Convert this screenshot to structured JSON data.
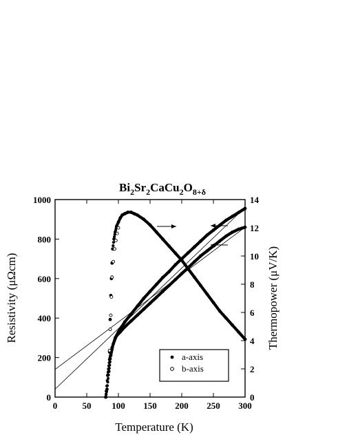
{
  "chart_data": {
    "type": "scatter",
    "title": {
      "parts": [
        {
          "t": "Bi",
          "sub": false
        },
        {
          "t": "2",
          "sub": true
        },
        {
          "t": "Sr",
          "sub": false
        },
        {
          "t": "2",
          "sub": true
        },
        {
          "t": "CaCu",
          "sub": false
        },
        {
          "t": "2",
          "sub": true
        },
        {
          "t": "O",
          "sub": false
        },
        {
          "t": "8+δ",
          "sub": true
        }
      ]
    },
    "xlabel": "Temperature (K)",
    "ylabel_left": "Resistivity (μΩcm)",
    "ylabel_right": "Thermopower (μV/K)",
    "xlim": [
      0,
      300
    ],
    "ylim_left": [
      0,
      1000
    ],
    "ylim_right": [
      0,
      14
    ],
    "xticks": [
      "0",
      "50",
      "100",
      "150",
      "200",
      "250",
      "300"
    ],
    "yticks_left": [
      "0",
      "200",
      "400",
      "600",
      "800",
      "1000"
    ],
    "yticks_right": [
      "0",
      "2",
      "4",
      "6",
      "8",
      "10",
      "12",
      "14"
    ],
    "grid": false,
    "legend": {
      "placement": "bottom-right",
      "entries": [
        {
          "label": "a-axis",
          "marker": "filled-circle"
        },
        {
          "label": "b-axis",
          "marker": "open-circle"
        }
      ]
    },
    "series": [
      {
        "label": "a-axis",
        "quantity": "resistivity",
        "axis": "left",
        "marker": "filled-circle",
        "x": [
          80,
          82,
          85,
          88,
          92,
          97,
          103,
          110,
          120,
          130,
          140,
          150,
          160,
          170,
          180,
          190,
          200,
          210,
          220,
          230,
          240,
          250,
          260,
          270,
          280,
          290,
          300
        ],
        "y": [
          0,
          40,
          130,
          210,
          270,
          310,
          330,
          355,
          385,
          415,
          445,
          475,
          505,
          535,
          565,
          595,
          625,
          655,
          685,
          715,
          740,
          765,
          790,
          815,
          835,
          850,
          860
        ]
      },
      {
        "label": "b-axis",
        "quantity": "resistivity",
        "axis": "left",
        "marker": "filled-circle",
        "x": [
          80,
          81,
          83,
          86,
          90,
          95,
          100,
          105,
          110,
          120,
          130,
          140,
          150,
          160,
          170,
          180,
          190,
          200,
          210,
          220,
          230,
          240,
          250,
          260,
          270,
          280,
          290,
          300
        ],
        "y": [
          0,
          30,
          110,
          190,
          250,
          300,
          330,
          355,
          380,
          420,
          460,
          500,
          535,
          570,
          605,
          635,
          670,
          700,
          730,
          760,
          790,
          820,
          845,
          870,
          895,
          915,
          935,
          955
        ]
      },
      {
        "label": "a-axis",
        "quantity": "thermopower",
        "axis": "right",
        "marker": "filled-circle",
        "x": [
          86,
          87,
          88,
          89,
          90,
          91,
          93,
          95,
          97,
          100,
          103,
          106,
          110,
          115,
          120,
          125,
          130,
          140,
          150,
          160,
          170,
          180,
          190,
          200,
          210,
          220,
          230,
          240,
          250,
          260,
          270,
          280,
          290,
          300
        ],
        "y": [
          3.2,
          5.5,
          7.2,
          8.4,
          9.5,
          10.5,
          11.2,
          11.7,
          12.1,
          12.4,
          12.7,
          12.9,
          13.0,
          13.1,
          13.1,
          13.0,
          12.9,
          12.6,
          12.2,
          11.7,
          11.2,
          10.7,
          10.2,
          9.7,
          9.1,
          8.5,
          7.9,
          7.3,
          6.7,
          6.1,
          5.6,
          5.1,
          4.6,
          4.1
        ]
      },
      {
        "label": "b-axis",
        "quantity": "thermopower",
        "axis": "right",
        "marker": "open-circle",
        "x": [
          86,
          87,
          88,
          89,
          90,
          92,
          94,
          96,
          98,
          100
        ],
        "y": [
          3.3,
          4.8,
          5.8,
          7.1,
          8.5,
          9.6,
          10.5,
          11.1,
          11.6,
          12.0
        ]
      }
    ],
    "reference_lines": [
      {
        "axis": "left",
        "x": [
          0,
          300
        ],
        "y": [
          140,
          860
        ]
      },
      {
        "axis": "left",
        "x": [
          0,
          300
        ],
        "y": [
          40,
          960
        ]
      }
    ],
    "annotations": [
      {
        "kind": "arrow",
        "direction": "right",
        "points_to": "right axis"
      },
      {
        "kind": "arrow",
        "direction": "left",
        "points_to": "left axis"
      },
      {
        "kind": "arrow",
        "direction": "left",
        "points_to": "left axis"
      }
    ],
    "colors": {
      "ink": "#000000",
      "background": "#ffffff"
    }
  }
}
